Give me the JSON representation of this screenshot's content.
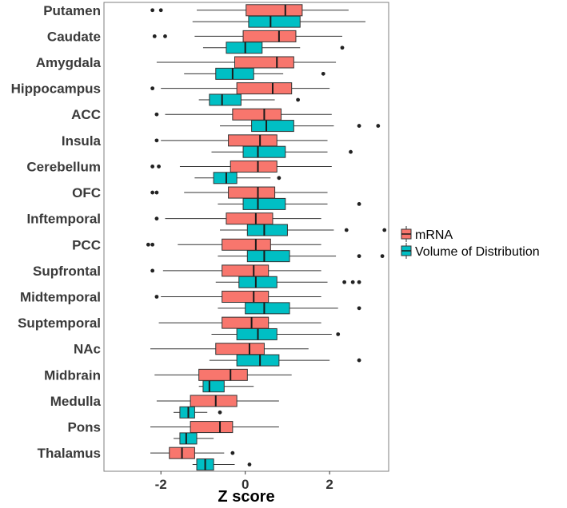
{
  "chart_data": {
    "type": "boxplot",
    "orientation": "horizontal",
    "title": "",
    "xlabel": "Z score",
    "ylabel": "",
    "xlim": [
      -3.35,
      3.4
    ],
    "xticks": [
      -2,
      0,
      2
    ],
    "xtick_labels": [
      "-2",
      "0",
      "2"
    ],
    "grid": false,
    "legend_position": "right",
    "categories": [
      "Putamen",
      "Caudate",
      "Amygdala",
      "Hippocampus",
      "ACC",
      "Insula",
      "Cerebellum",
      "OFC",
      "Inftemporal",
      "PCC",
      "Supfrontal",
      "Midtemporal",
      "Suptemporal",
      "NAc",
      "Midbrain",
      "Medulla",
      "Pons",
      "Thalamus"
    ],
    "series": [
      {
        "name": "mRNA",
        "color": "#F8766D",
        "boxes": [
          {
            "whisker_low": -1.15,
            "q1": 0.02,
            "median": 0.95,
            "q3": 1.35,
            "whisker_high": 2.45,
            "outliers": [
              -2.2,
              -2.0
            ]
          },
          {
            "whisker_low": -1.2,
            "q1": -0.05,
            "median": 0.8,
            "q3": 1.2,
            "whisker_high": 2.3,
            "outliers": [
              -2.15,
              -1.9
            ]
          },
          {
            "whisker_low": -2.1,
            "q1": -0.25,
            "median": 0.75,
            "q3": 1.15,
            "whisker_high": 2.15,
            "outliers": []
          },
          {
            "whisker_low": -2.0,
            "q1": -0.2,
            "median": 0.65,
            "q3": 1.1,
            "whisker_high": 2.0,
            "outliers": [
              -2.2
            ]
          },
          {
            "whisker_low": -1.9,
            "q1": -0.3,
            "median": 0.45,
            "q3": 0.85,
            "whisker_high": 2.05,
            "outliers": [
              -2.1
            ]
          },
          {
            "whisker_low": -2.0,
            "q1": -0.4,
            "median": 0.35,
            "q3": 0.75,
            "whisker_high": 1.95,
            "outliers": [
              -2.1
            ]
          },
          {
            "whisker_low": -1.55,
            "q1": -0.35,
            "median": 0.3,
            "q3": 0.75,
            "whisker_high": 2.05,
            "outliers": [
              -2.2,
              -2.05
            ]
          },
          {
            "whisker_low": -1.45,
            "q1": -0.4,
            "median": 0.3,
            "q3": 0.7,
            "whisker_high": 1.95,
            "outliers": [
              -2.2,
              -2.1
            ]
          },
          {
            "whisker_low": -1.9,
            "q1": -0.45,
            "median": 0.25,
            "q3": 0.65,
            "whisker_high": 1.8,
            "outliers": [
              -2.1
            ]
          },
          {
            "whisker_low": -1.6,
            "q1": -0.55,
            "median": 0.25,
            "q3": 0.6,
            "whisker_high": 1.8,
            "outliers": [
              -2.3,
              -2.2
            ]
          },
          {
            "whisker_low": -1.95,
            "q1": -0.55,
            "median": 0.2,
            "q3": 0.55,
            "whisker_high": 1.8,
            "outliers": [
              -2.2
            ]
          },
          {
            "whisker_low": -2.0,
            "q1": -0.55,
            "median": 0.2,
            "q3": 0.55,
            "whisker_high": 1.8,
            "outliers": [
              -2.1
            ]
          },
          {
            "whisker_low": -2.05,
            "q1": -0.55,
            "median": 0.15,
            "q3": 0.55,
            "whisker_high": 1.8,
            "outliers": []
          },
          {
            "whisker_low": -2.25,
            "q1": -0.7,
            "median": 0.1,
            "q3": 0.45,
            "whisker_high": 1.5,
            "outliers": []
          },
          {
            "whisker_low": -2.15,
            "q1": -1.1,
            "median": -0.35,
            "q3": 0.05,
            "whisker_high": 1.1,
            "outliers": []
          },
          {
            "whisker_low": -2.1,
            "q1": -1.3,
            "median": -0.7,
            "q3": -0.2,
            "whisker_high": 0.8,
            "outliers": []
          },
          {
            "whisker_low": -2.25,
            "q1": -1.3,
            "median": -0.6,
            "q3": -0.3,
            "whisker_high": 0.8,
            "outliers": []
          },
          {
            "whisker_low": -2.25,
            "q1": -1.8,
            "median": -1.5,
            "q3": -1.2,
            "whisker_high": -0.5,
            "outliers": [
              -0.3
            ]
          }
        ]
      },
      {
        "name": "Volume of Distribution",
        "color": "#00BFC4",
        "boxes": [
          {
            "whisker_low": -1.25,
            "q1": 0.08,
            "median": 0.6,
            "q3": 1.3,
            "whisker_high": 2.85,
            "outliers": []
          },
          {
            "whisker_low": -1.0,
            "q1": -0.45,
            "median": 0.0,
            "q3": 0.4,
            "whisker_high": 1.3,
            "outliers": [
              2.3
            ]
          },
          {
            "whisker_low": -1.45,
            "q1": -0.7,
            "median": -0.3,
            "q3": 0.2,
            "whisker_high": 0.9,
            "outliers": [
              1.85
            ]
          },
          {
            "whisker_low": -1.1,
            "q1": -0.85,
            "median": -0.55,
            "q3": -0.1,
            "whisker_high": 0.7,
            "outliers": [
              1.25
            ]
          },
          {
            "whisker_low": -0.6,
            "q1": 0.15,
            "median": 0.5,
            "q3": 1.15,
            "whisker_high": 2.1,
            "outliers": [
              2.7,
              3.15
            ]
          },
          {
            "whisker_low": -0.8,
            "q1": -0.05,
            "median": 0.3,
            "q3": 0.95,
            "whisker_high": 1.95,
            "outliers": [
              2.5
            ]
          },
          {
            "whisker_low": -1.2,
            "q1": -0.75,
            "median": -0.45,
            "q3": -0.2,
            "whisker_high": 0.6,
            "outliers": [
              0.8
            ]
          },
          {
            "whisker_low": -0.65,
            "q1": -0.05,
            "median": 0.3,
            "q3": 0.95,
            "whisker_high": 1.95,
            "outliers": [
              2.7
            ]
          },
          {
            "whisker_low": -0.6,
            "q1": 0.05,
            "median": 0.45,
            "q3": 1.0,
            "whisker_high": 2.1,
            "outliers": [
              2.4,
              3.3
            ]
          },
          {
            "whisker_low": -0.65,
            "q1": 0.05,
            "median": 0.45,
            "q3": 1.05,
            "whisker_high": 2.15,
            "outliers": [
              2.7,
              3.25
            ]
          },
          {
            "whisker_low": -0.7,
            "q1": -0.15,
            "median": 0.25,
            "q3": 0.75,
            "whisker_high": 1.95,
            "outliers": [
              2.35,
              2.55,
              2.7
            ]
          },
          {
            "whisker_low": -0.65,
            "q1": 0.0,
            "median": 0.45,
            "q3": 1.05,
            "whisker_high": 2.2,
            "outliers": [
              2.7
            ]
          },
          {
            "whisker_low": -0.8,
            "q1": -0.2,
            "median": 0.3,
            "q3": 0.75,
            "whisker_high": 2.05,
            "outliers": [
              2.2
            ]
          },
          {
            "whisker_low": -0.85,
            "q1": -0.2,
            "median": 0.35,
            "q3": 0.8,
            "whisker_high": 2.0,
            "outliers": [
              2.7
            ]
          },
          {
            "whisker_low": -1.1,
            "q1": -1.0,
            "median": -0.85,
            "q3": -0.5,
            "whisker_high": 0.2,
            "outliers": []
          },
          {
            "whisker_low": -1.7,
            "q1": -1.55,
            "median": -1.35,
            "q3": -1.2,
            "whisker_high": -0.9,
            "outliers": [
              -0.6
            ]
          },
          {
            "whisker_low": -1.7,
            "q1": -1.55,
            "median": -1.4,
            "q3": -1.15,
            "whisker_high": -0.75,
            "outliers": []
          },
          {
            "whisker_low": -1.25,
            "q1": -1.15,
            "median": -0.95,
            "q3": -0.75,
            "whisker_high": -0.25,
            "outliers": [
              0.1
            ]
          }
        ]
      }
    ]
  }
}
